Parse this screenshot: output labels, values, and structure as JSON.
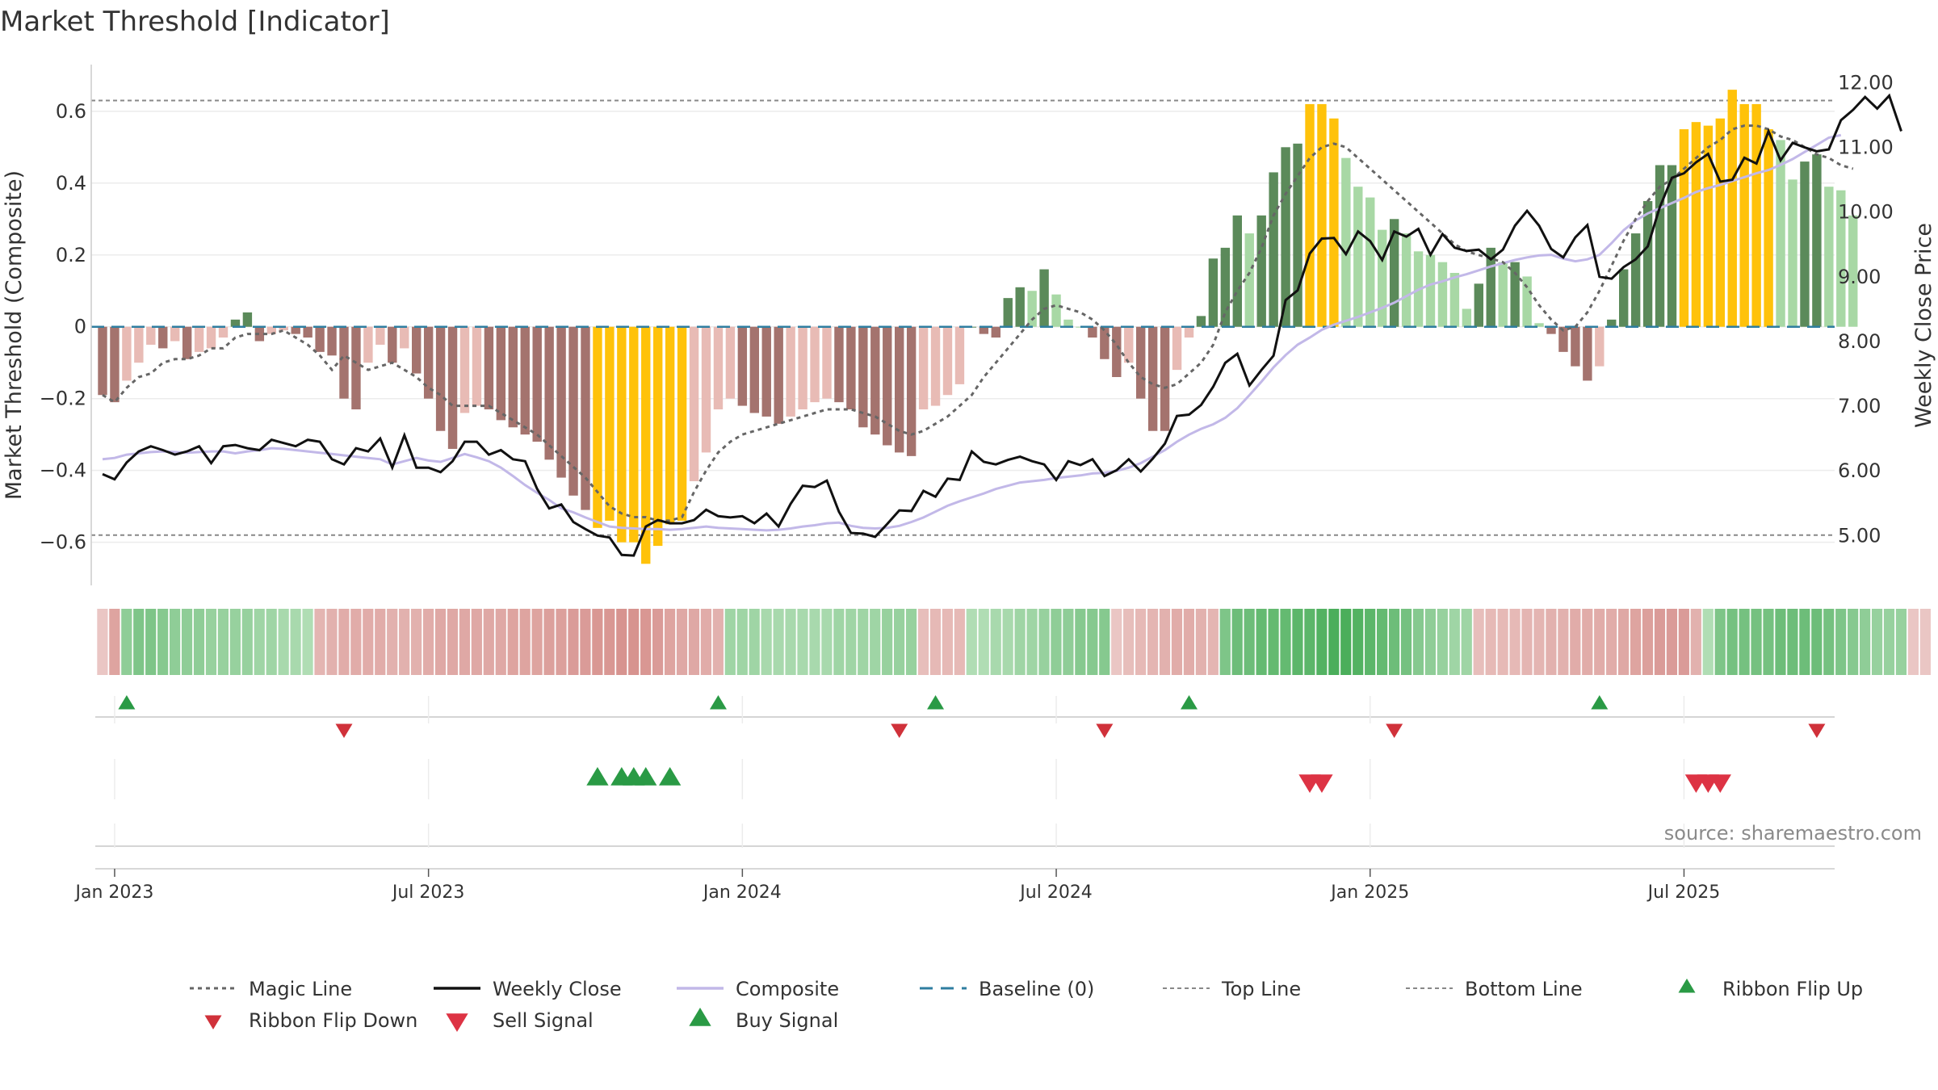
{
  "chart_data": {
    "type": "bar",
    "title": "Market Threshold [Indicator]",
    "ylabel": "Market Threshold (Composite)",
    "y2label": "Weekly Close Price",
    "source": "source: sharemaestro.com",
    "ylim": [
      -0.72,
      0.73
    ],
    "y2lim": [
      4.23,
      12.28
    ],
    "yticks": [
      0.6,
      0.4,
      0.2,
      0,
      -0.2,
      -0.4,
      -0.6
    ],
    "ytick_labels": [
      "0.6",
      "0.4",
      "0.2",
      "0",
      "−0.2",
      "−0.4",
      "−0.6"
    ],
    "y2ticks": [
      12,
      11,
      10,
      9,
      8,
      7,
      6,
      5
    ],
    "y2tick_labels": [
      "12.00",
      "11.00",
      "10.00",
      "9.00",
      "8.00",
      "7.00",
      "6.00",
      "5.00"
    ],
    "x_tick_labels": [
      "Jan 2023",
      "Jul 2023",
      "Jan 2024",
      "Jul 2024",
      "Jan 2025",
      "Jul 2025"
    ],
    "x_tick_weeks": [
      1,
      27,
      53,
      79,
      105,
      131
    ],
    "top_line": 0.63,
    "bottom_line": -0.58,
    "grid": true,
    "legend_position": "bottom",
    "colors": {
      "bar_neg_strong": "#a4736e",
      "bar_neg_weak": "#e8bbb5",
      "bar_pos_strong": "#5b8a5a",
      "bar_pos_weak": "#a8d8a5",
      "bar_extreme": "#ffc20a",
      "weekly_close": "#111111",
      "composite": "#c2b8e8",
      "magic_line": "#666666",
      "baseline": "#2f7ea0",
      "flip_up": "#2a9a45",
      "flip_down": "#d0313a",
      "buy": "#2a9a45",
      "sell": "#dd3344"
    },
    "composite_bars": [
      -0.19,
      -0.21,
      -0.15,
      -0.1,
      -0.05,
      -0.06,
      -0.04,
      -0.09,
      -0.07,
      -0.06,
      -0.03,
      0.02,
      0.04,
      -0.04,
      -0.02,
      -0.01,
      -0.02,
      -0.03,
      -0.07,
      -0.08,
      -0.2,
      -0.23,
      -0.1,
      -0.05,
      -0.1,
      -0.06,
      -0.13,
      -0.2,
      -0.29,
      -0.34,
      -0.24,
      -0.22,
      -0.23,
      -0.26,
      -0.28,
      -0.3,
      -0.32,
      -0.37,
      -0.42,
      -0.47,
      -0.51,
      -0.56,
      -0.54,
      -0.6,
      -0.6,
      -0.66,
      -0.61,
      -0.55,
      -0.54,
      -0.43,
      -0.35,
      -0.23,
      -0.2,
      -0.22,
      -0.24,
      -0.25,
      -0.27,
      -0.25,
      -0.23,
      -0.21,
      -0.2,
      -0.21,
      -0.23,
      -0.28,
      -0.3,
      -0.33,
      -0.35,
      -0.36,
      -0.23,
      -0.22,
      -0.19,
      -0.16,
      0,
      -0.02,
      -0.03,
      0.08,
      0.11,
      0.1,
      0.16,
      0.09,
      0.02,
      0,
      -0.03,
      -0.09,
      -0.14,
      -0.1,
      -0.2,
      -0.29,
      -0.29,
      -0.12,
      -0.03,
      0.03,
      0.19,
      0.22,
      0.31,
      0.26,
      0.31,
      0.43,
      0.5,
      0.51,
      0.62,
      0.62,
      0.58,
      0.47,
      0.39,
      0.36,
      0.27,
      0.3,
      0.26,
      0.21,
      0.2,
      0.18,
      0.15,
      0.05,
      0.12,
      0.22,
      0.18,
      0.18,
      0.14,
      0.01,
      -0.02,
      -0.07,
      -0.11,
      -0.15,
      -0.11,
      0.02,
      0.16,
      0.26,
      0.35,
      0.45,
      0.45,
      0.55,
      0.57,
      0.56,
      0.58,
      0.66,
      0.62,
      0.62,
      0.55,
      0.52,
      0.41,
      0.46,
      0.48,
      0.39,
      0.38,
      0.31
    ],
    "weekly_close": [
      5.95,
      5.87,
      6.13,
      6.3,
      6.38,
      6.32,
      6.25,
      6.3,
      6.38,
      6.12,
      6.38,
      6.4,
      6.35,
      6.32,
      6.48,
      6.43,
      6.38,
      6.48,
      6.45,
      6.18,
      6.1,
      6.35,
      6.3,
      6.5,
      6.05,
      6.55,
      6.05,
      6.05,
      5.98,
      6.15,
      6.45,
      6.45,
      6.25,
      6.32,
      6.18,
      6.15,
      5.72,
      5.42,
      5.48,
      5.21,
      5.1,
      5.0,
      4.97,
      4.7,
      4.69,
      5.14,
      5.24,
      5.19,
      5.19,
      5.24,
      5.4,
      5.3,
      5.28,
      5.3,
      5.19,
      5.34,
      5.14,
      5.49,
      5.77,
      5.75,
      5.85,
      5.37,
      5.04,
      5.03,
      4.98,
      5.18,
      5.39,
      5.38,
      5.69,
      5.6,
      5.88,
      5.86,
      6.3,
      6.14,
      6.1,
      6.17,
      6.22,
      6.15,
      6.1,
      5.86,
      6.15,
      6.09,
      6.18,
      5.92,
      6.01,
      6.18,
      5.99,
      6.19,
      6.42,
      6.85,
      6.87,
      7.02,
      7.3,
      7.67,
      7.81,
      7.32,
      7.56,
      7.78,
      8.64,
      8.79,
      9.36,
      9.59,
      9.6,
      9.35,
      9.7,
      9.55,
      9.26,
      9.7,
      9.62,
      9.74,
      9.34,
      9.66,
      9.45,
      9.4,
      9.42,
      9.27,
      9.42,
      9.79,
      10.02,
      9.79,
      9.43,
      9.3,
      9.61,
      9.8,
      9.0,
      8.97,
      9.15,
      9.27,
      9.47,
      10.08,
      10.53,
      10.6,
      10.77,
      10.9,
      10.47,
      10.5,
      10.84,
      10.75,
      11.25,
      10.8,
      11.07,
      11.0,
      10.94,
      10.97,
      11.42,
      11.58,
      11.78,
      11.6,
      11.8,
      11.25
    ],
    "composite_line": [
      6.18,
      6.2,
      6.25,
      6.27,
      6.29,
      6.3,
      6.29,
      6.28,
      6.29,
      6.3,
      6.3,
      6.27,
      6.3,
      6.32,
      6.35,
      6.34,
      6.32,
      6.3,
      6.28,
      6.26,
      6.24,
      6.22,
      6.2,
      6.18,
      6.1,
      6.15,
      6.2,
      6.16,
      6.14,
      6.2,
      6.26,
      6.21,
      6.15,
      6.05,
      5.92,
      5.78,
      5.66,
      5.55,
      5.42,
      5.36,
      5.28,
      5.21,
      5.14,
      5.12,
      5.11,
      5.1,
      5.1,
      5.09,
      5.1,
      5.12,
      5.14,
      5.12,
      5.11,
      5.1,
      5.09,
      5.08,
      5.09,
      5.11,
      5.14,
      5.16,
      5.19,
      5.2,
      5.15,
      5.12,
      5.11,
      5.12,
      5.15,
      5.21,
      5.28,
      5.37,
      5.46,
      5.53,
      5.59,
      5.65,
      5.72,
      5.77,
      5.82,
      5.84,
      5.86,
      5.89,
      5.91,
      5.93,
      5.96,
      5.97,
      6.0,
      6.05,
      6.12,
      6.22,
      6.32,
      6.45,
      6.56,
      6.65,
      6.72,
      6.82,
      6.97,
      7.17,
      7.38,
      7.6,
      7.79,
      7.95,
      8.06,
      8.18,
      8.26,
      8.32,
      8.38,
      8.45,
      8.52,
      8.6,
      8.7,
      8.8,
      8.88,
      8.93,
      8.99,
      9.04,
      9.1,
      9.16,
      9.21,
      9.26,
      9.3,
      9.33,
      9.34,
      9.28,
      9.24,
      9.27,
      9.34,
      9.52,
      9.72,
      9.87,
      9.98,
      10.06,
      10.14,
      10.22,
      10.31,
      10.37,
      10.42,
      10.48,
      10.54,
      10.6,
      10.65,
      10.73,
      10.82,
      10.93,
      11.04,
      11.15,
      11.19
    ],
    "magic_line": [
      -0.19,
      -0.21,
      -0.17,
      -0.14,
      -0.13,
      -0.1,
      -0.09,
      -0.09,
      -0.08,
      -0.06,
      -0.06,
      -0.03,
      -0.02,
      -0.02,
      -0.02,
      -0.01,
      -0.03,
      -0.05,
      -0.08,
      -0.12,
      -0.08,
      -0.1,
      -0.12,
      -0.11,
      -0.1,
      -0.12,
      -0.14,
      -0.17,
      -0.19,
      -0.22,
      -0.22,
      -0.22,
      -0.22,
      -0.24,
      -0.26,
      -0.28,
      -0.3,
      -0.33,
      -0.36,
      -0.39,
      -0.42,
      -0.46,
      -0.5,
      -0.52,
      -0.53,
      -0.53,
      -0.54,
      -0.54,
      -0.53,
      -0.46,
      -0.4,
      -0.35,
      -0.32,
      -0.3,
      -0.29,
      -0.28,
      -0.27,
      -0.26,
      -0.25,
      -0.24,
      -0.23,
      -0.23,
      -0.23,
      -0.24,
      -0.25,
      -0.27,
      -0.29,
      -0.3,
      -0.29,
      -0.27,
      -0.25,
      -0.22,
      -0.19,
      -0.14,
      -0.1,
      -0.06,
      -0.02,
      0.02,
      0.05,
      0.06,
      0.05,
      0.04,
      0.02,
      -0.01,
      -0.05,
      -0.1,
      -0.14,
      -0.16,
      -0.17,
      -0.16,
      -0.13,
      -0.1,
      -0.05,
      0.04,
      0.1,
      0.15,
      0.22,
      0.31,
      0.37,
      0.42,
      0.47,
      0.5,
      0.51,
      0.5,
      0.47,
      0.44,
      0.41,
      0.38,
      0.35,
      0.32,
      0.29,
      0.26,
      0.23,
      0.21,
      0.2,
      0.19,
      0.18,
      0.15,
      0.11,
      0.06,
      0.02,
      -0.01,
      0,
      0.04,
      0.1,
      0.17,
      0.24,
      0.3,
      0.35,
      0.39,
      0.41,
      0.44,
      0.47,
      0.5,
      0.52,
      0.55,
      0.56,
      0.56,
      0.55,
      0.53,
      0.52,
      0.5,
      0.48,
      0.47,
      0.45,
      0.44
    ],
    "ribbon_intensity": [
      -0.3,
      -0.7,
      0.5,
      0.6,
      0.6,
      0.55,
      0.5,
      0.5,
      0.5,
      0.45,
      0.45,
      0.45,
      0.45,
      0.4,
      0.4,
      0.35,
      0.35,
      0.3,
      -0.5,
      -0.55,
      -0.6,
      -0.6,
      -0.6,
      -0.6,
      -0.55,
      -0.55,
      -0.55,
      -0.6,
      -0.65,
      -0.65,
      -0.65,
      -0.65,
      -0.65,
      -0.65,
      -0.7,
      -0.7,
      -0.7,
      -0.75,
      -0.75,
      -0.8,
      -0.8,
      -0.85,
      -0.85,
      -0.9,
      -0.9,
      -0.85,
      -0.8,
      -0.7,
      -0.65,
      -0.65,
      -0.6,
      -0.55,
      0.4,
      0.4,
      0.4,
      0.35,
      0.35,
      0.35,
      0.35,
      0.35,
      0.35,
      0.4,
      0.4,
      0.4,
      0.4,
      0.45,
      0.45,
      0.45,
      -0.4,
      -0.45,
      -0.45,
      -0.45,
      0.3,
      0.3,
      0.35,
      0.35,
      0.4,
      0.4,
      0.45,
      0.5,
      0.5,
      0.55,
      0.55,
      0.55,
      -0.3,
      -0.4,
      -0.45,
      -0.5,
      -0.55,
      -0.6,
      -0.6,
      -0.55,
      -0.5,
      0.6,
      0.7,
      0.7,
      0.75,
      0.75,
      0.75,
      0.8,
      0.8,
      0.85,
      0.9,
      0.9,
      0.85,
      0.8,
      0.75,
      0.7,
      0.65,
      0.55,
      0.5,
      0.45,
      0.4,
      0.4,
      -0.4,
      -0.45,
      -0.45,
      -0.45,
      -0.5,
      -0.5,
      -0.55,
      -0.55,
      -0.6,
      -0.6,
      -0.6,
      -0.6,
      -0.65,
      -0.7,
      -0.75,
      -0.8,
      -0.8,
      -0.8,
      -0.55,
      0.3,
      0.6,
      0.65,
      0.65,
      0.65,
      0.65,
      0.7,
      0.7,
      0.7,
      0.7,
      0.65,
      0.6,
      0.55,
      0.5,
      0.45,
      0.45,
      0.45,
      -0.3,
      -0.3
    ],
    "ribbon_flip_up_weeks": [
      2,
      51,
      69,
      90,
      124
    ],
    "ribbon_flip_down_weeks": [
      20,
      66,
      83,
      107,
      142
    ],
    "buy_signal_weeks": [
      41,
      43,
      44,
      45,
      47
    ],
    "sell_signal_weeks": [
      100,
      101,
      132,
      133,
      134
    ],
    "legend": [
      {
        "label": "Magic Line",
        "kind": "dotted",
        "color": "#666666"
      },
      {
        "label": "Weekly Close",
        "kind": "solid",
        "color": "#111111"
      },
      {
        "label": "Composite",
        "kind": "solid",
        "color": "#c2b8e8"
      },
      {
        "label": "Baseline (0)",
        "kind": "dashed",
        "color": "#2f7ea0"
      },
      {
        "label": "Top Line",
        "kind": "dotted-light",
        "color": "#888888"
      },
      {
        "label": "Bottom Line",
        "kind": "dotted-light",
        "color": "#888888"
      },
      {
        "label": "Ribbon Flip Up",
        "kind": "tri-up",
        "color": "#2a9a45"
      },
      {
        "label": "Ribbon Flip Down",
        "kind": "tri-down",
        "color": "#d0313a"
      },
      {
        "label": "Sell Signal",
        "kind": "tri-down-big",
        "color": "#dd3344"
      },
      {
        "label": "Buy Signal",
        "kind": "tri-up-big",
        "color": "#2a9a45"
      }
    ]
  }
}
